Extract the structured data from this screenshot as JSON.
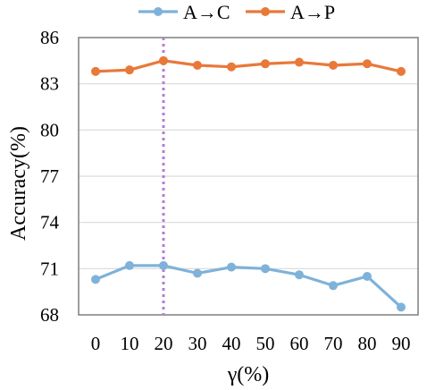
{
  "chart_data": {
    "type": "line",
    "title": "",
    "xlabel": "γ(%)",
    "ylabel": "Accuracy(%)",
    "x": [
      0,
      10,
      20,
      30,
      40,
      50,
      60,
      70,
      80,
      90
    ],
    "x_tick_labels": [
      "0",
      "10",
      "20",
      "30",
      "40",
      "50",
      "60",
      "70",
      "80",
      "90"
    ],
    "ylim": [
      68,
      86
    ],
    "y_ticks": [
      68,
      71,
      74,
      77,
      80,
      83,
      86
    ],
    "grid": "horizontal",
    "legend_position": "top",
    "reference_line": {
      "x": 20,
      "style": "dotted",
      "color": "#b57bd6"
    },
    "series": [
      {
        "name": "A→C",
        "color": "#7fb2d9",
        "values": [
          70.3,
          71.2,
          71.2,
          70.7,
          71.1,
          71.0,
          70.6,
          69.9,
          70.5,
          68.5
        ]
      },
      {
        "name": "A→P",
        "color": "#e8793a",
        "values": [
          83.8,
          83.9,
          84.5,
          84.2,
          84.1,
          84.3,
          84.4,
          84.2,
          84.3,
          83.8
        ]
      }
    ]
  }
}
